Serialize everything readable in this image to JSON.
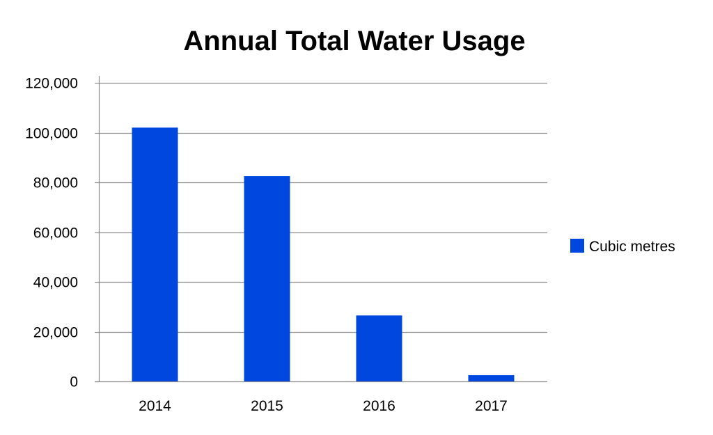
{
  "chart_data": {
    "type": "bar",
    "title": "Annual Total Water Usage",
    "xlabel": "",
    "ylabel": "",
    "categories": [
      "2014",
      "2015",
      "2016",
      "2017"
    ],
    "series": [
      {
        "name": "Cubic metres",
        "values": [
          102000,
          82500,
          26500,
          2500
        ],
        "color": "#0047E0"
      }
    ],
    "ylim": [
      0,
      120000
    ],
    "yticks": [
      0,
      20000,
      40000,
      60000,
      80000,
      100000,
      120000
    ],
    "ytick_labels": [
      "0",
      "20,000",
      "40,000",
      "60,000",
      "80,000",
      "100,000",
      "120,000"
    ],
    "grid": true,
    "legend_position": "right"
  }
}
